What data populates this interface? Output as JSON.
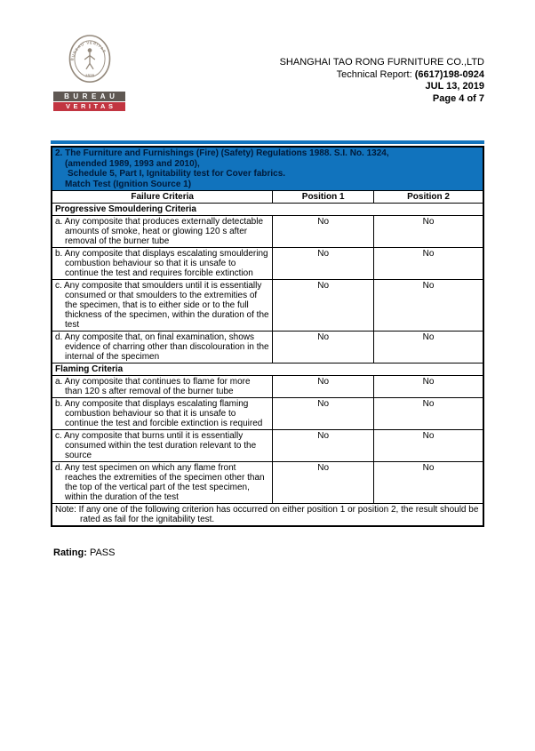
{
  "colors": {
    "accent_blue": "#1173bd",
    "title_text": "#001a3a",
    "logo_red": "#c23541",
    "logo_gray": "#5f5853",
    "seal_gray": "#94897c"
  },
  "logo": {
    "seal_text": "BUREAU VERITAS",
    "seal_year": "1828",
    "bar1": "BUREAU",
    "bar2": "VERITAS"
  },
  "header": {
    "company": "SHANGHAI TAO RONG FURNITURE CO.,LTD",
    "report_label": "Technical Report:",
    "report_number": "(6617)198-0924",
    "date": "JUL 13, 2019",
    "page": "Page 4 of 7"
  },
  "table": {
    "title_lines": [
      "2. The Furniture and Furnishings (Fire) (Safety) Regulations 1988. S.I. No. 1324,",
      "(amended 1989, 1993 and 2010),",
      "Schedule 5, Part I, Ignitability test for Cover fabrics.",
      "Match Test (Ignition Source 1)"
    ],
    "columns": [
      "Failure Criteria",
      "Position 1",
      "Position 2"
    ],
    "sections": [
      {
        "title": "Progressive Smouldering Criteria",
        "rows": [
          {
            "criteria": "a. Any composite that produces externally detectable amounts of smoke, heat or glowing 120 s after removal of the burner tube",
            "position1": "No",
            "position2": "No"
          },
          {
            "criteria": "b. Any composite that displays escalating smouldering combustion behaviour so that it is unsafe to continue the test and requires forcible extinction",
            "position1": "No",
            "position2": "No"
          },
          {
            "criteria": "c. Any composite that smoulders until it is essentially consumed or that smoulders to the extremities of the specimen, that is to either side or to the full thickness of the specimen, within the duration of the test",
            "position1": "No",
            "position2": "No"
          },
          {
            "criteria": "d. Any composite that, on final examination, shows evidence of charring other than discolouration in the internal of the specimen",
            "position1": "No",
            "position2": "No"
          }
        ]
      },
      {
        "title": "Flaming Criteria",
        "rows": [
          {
            "criteria": "a. Any composite that continues to flame for more than 120 s after removal of the burner tube",
            "position1": "No",
            "position2": "No"
          },
          {
            "criteria": "b. Any composite that displays escalating flaming combustion behaviour so that it is unsafe to continue the test and forcible extinction is required",
            "position1": "No",
            "position2": "No"
          },
          {
            "criteria": "c. Any composite that burns until it is essentially consumed within the test duration relevant to the source",
            "position1": "No",
            "position2": "No"
          },
          {
            "criteria": "d. Any test specimen on which any flame front reaches the extremities of the specimen other than the top of the vertical part of the test specimen, within the duration of the test",
            "position1": "No",
            "position2": "No"
          }
        ]
      }
    ],
    "note": "Note: If any one of the following criterion has occurred on either position 1 or position 2, the result should be rated as fail for the ignitability test."
  },
  "rating": {
    "label": "Rating:",
    "value": "PASS"
  }
}
